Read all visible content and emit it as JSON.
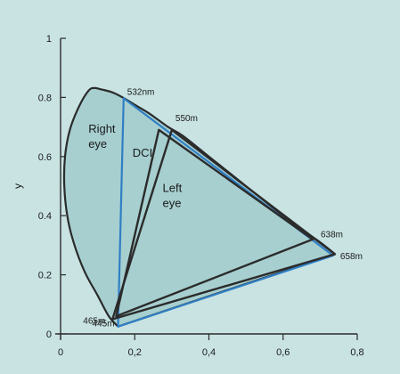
{
  "chart_data": {
    "type": "scatter",
    "title": "",
    "xlabel": "",
    "ylabel": "y",
    "xlim": [
      0,
      0.8
    ],
    "ylim": [
      0,
      1
    ],
    "x_ticks": [
      {
        "value": 0,
        "label": "0"
      },
      {
        "value": 0.2,
        "label": "0,2"
      },
      {
        "value": 0.4,
        "label": "0,4"
      },
      {
        "value": 0.6,
        "label": "0,6"
      },
      {
        "value": 0.8,
        "label": "0,8"
      }
    ],
    "y_ticks": [
      {
        "value": 0,
        "label": "0"
      },
      {
        "value": 0.2,
        "label": "0.2"
      },
      {
        "value": 0.4,
        "label": "0.4"
      },
      {
        "value": 0.6,
        "label": "0.6"
      },
      {
        "value": 0.8,
        "label": "0.8"
      },
      {
        "value": 1,
        "label": "1"
      }
    ],
    "grid": false,
    "spectral_locus": [
      [
        0.74,
        0.27
      ],
      [
        0.7,
        0.31
      ],
      [
        0.62,
        0.38
      ],
      [
        0.55,
        0.45
      ],
      [
        0.47,
        0.53
      ],
      [
        0.4,
        0.6
      ],
      [
        0.33,
        0.67
      ],
      [
        0.29,
        0.7
      ],
      [
        0.24,
        0.745
      ],
      [
        0.2,
        0.775
      ],
      [
        0.17,
        0.798
      ],
      [
        0.14,
        0.817
      ],
      [
        0.11,
        0.827
      ],
      [
        0.09,
        0.832
      ],
      [
        0.075,
        0.822
      ],
      [
        0.05,
        0.77
      ],
      [
        0.025,
        0.69
      ],
      [
        0.012,
        0.6
      ],
      [
        0.01,
        0.5
      ],
      [
        0.018,
        0.4
      ],
      [
        0.035,
        0.31
      ],
      [
        0.065,
        0.21
      ],
      [
        0.1,
        0.13
      ],
      [
        0.13,
        0.06
      ],
      [
        0.155,
        0.025
      ]
    ],
    "gamuts": [
      {
        "name": "Right eye",
        "color": "#2f7fc4",
        "points": [
          {
            "x": 0.17,
            "y": 0.797,
            "label": "532nm"
          },
          {
            "x": 0.735,
            "y": 0.265,
            "label": "658m"
          },
          {
            "x": 0.155,
            "y": 0.025,
            "label": "445m"
          }
        ]
      },
      {
        "name": "DCI",
        "color": "#2b2b2b",
        "points": [
          {
            "x": 0.265,
            "y": 0.69,
            "label": ""
          },
          {
            "x": 0.68,
            "y": 0.32,
            "label": ""
          },
          {
            "x": 0.15,
            "y": 0.06,
            "label": ""
          }
        ]
      },
      {
        "name": "Left eye",
        "color": "#2b2b2b",
        "points": [
          {
            "x": 0.3,
            "y": 0.69,
            "label": "550m"
          },
          {
            "x": 0.74,
            "y": 0.27,
            "label": "638m"
          },
          {
            "x": 0.14,
            "y": 0.05,
            "label": "465m"
          }
        ]
      }
    ],
    "region_labels": [
      "Right eye",
      "DCI",
      "Left eye"
    ],
    "colors": {
      "background": "#c9e3e3",
      "locus_fill": "#a7cfd0",
      "locus_stroke": "#2b2b2b",
      "right_eye": "#2f7fc4",
      "left_eye": "#2b2b2b",
      "dci": "#2b2b2b",
      "axis": "#2b2b2b"
    }
  }
}
